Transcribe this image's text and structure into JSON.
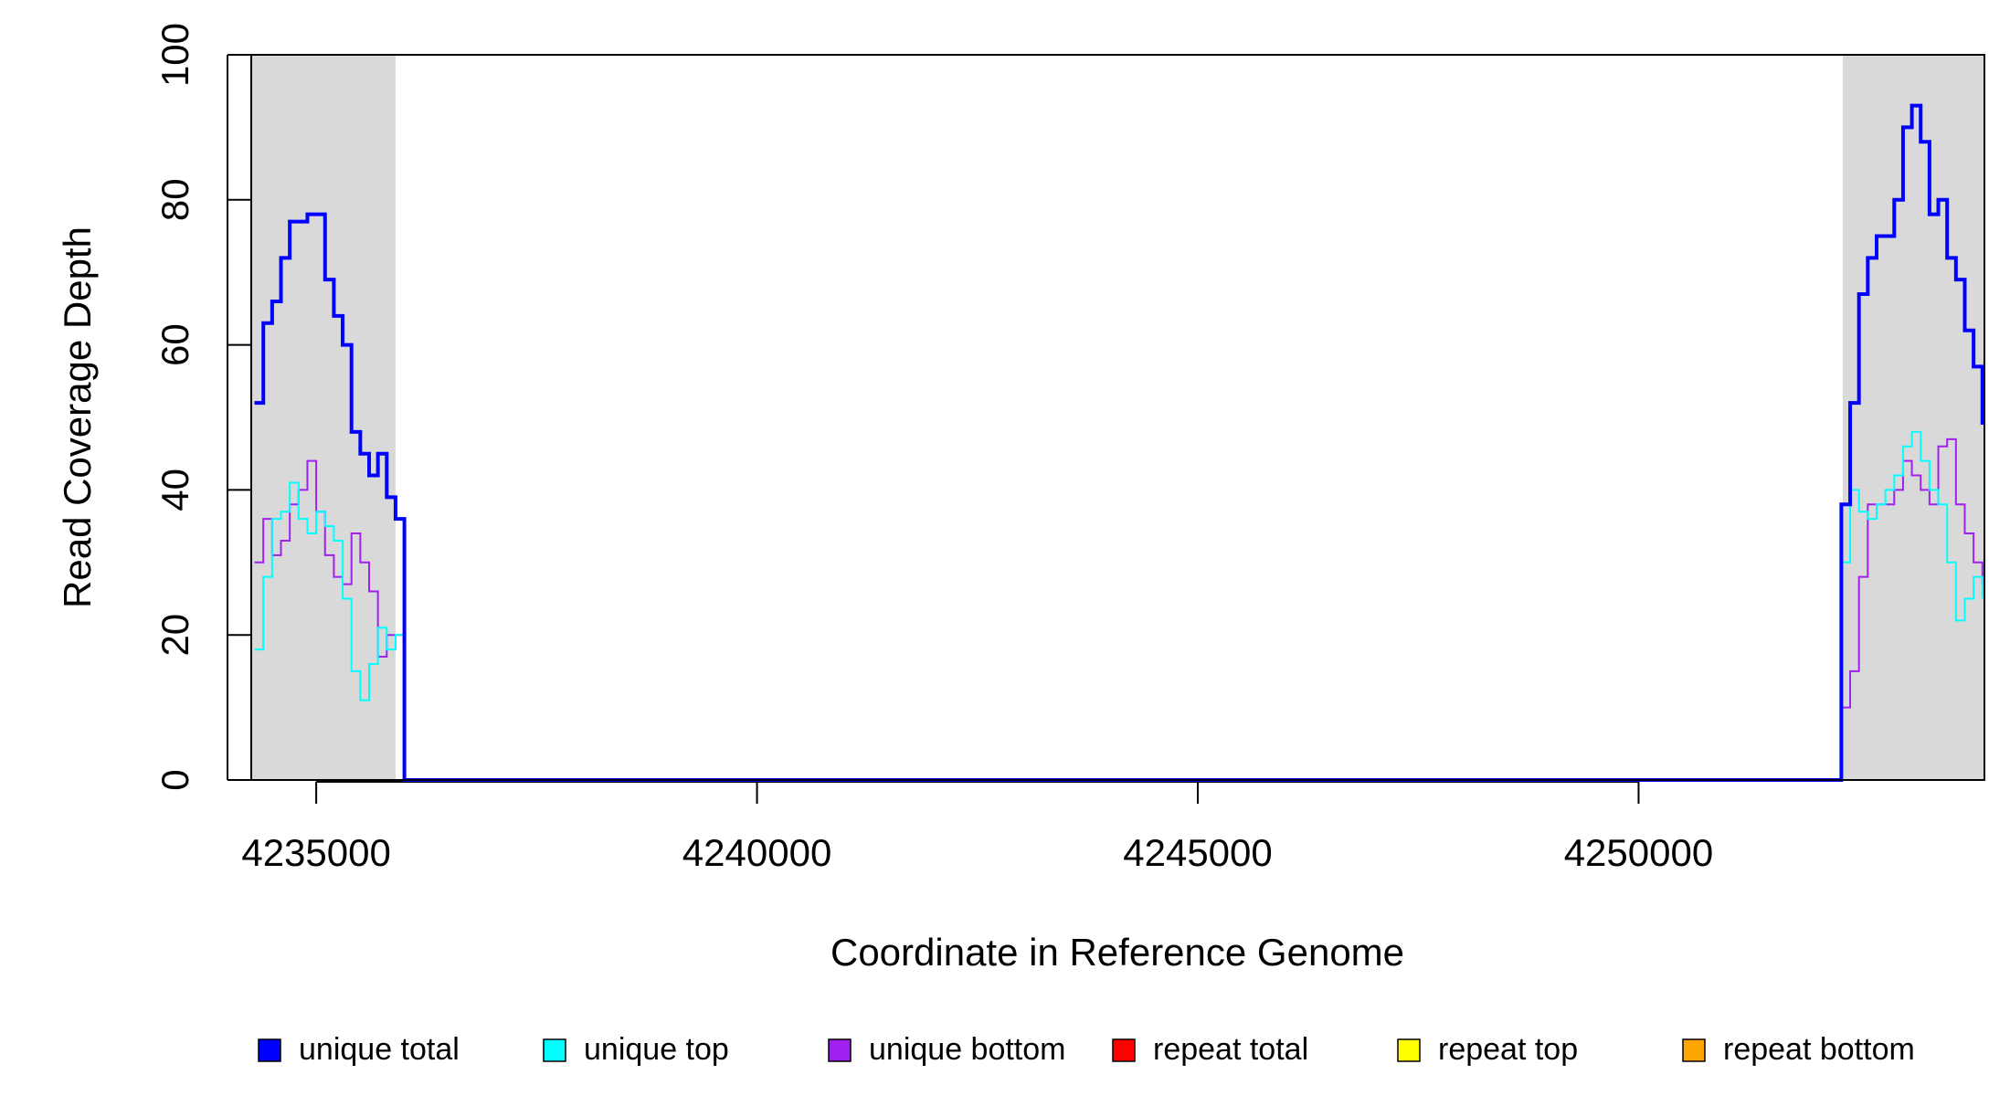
{
  "chart_data": {
    "type": "step",
    "xlabel": "Coordinate in Reference Genome",
    "ylabel": "Read Coverage Depth",
    "x": [
      4234300,
      4234400,
      4234500,
      4234600,
      4234700,
      4234800,
      4234900,
      4235000,
      4235100,
      4235200,
      4235300,
      4235400,
      4235500,
      4235600,
      4235700,
      4235800,
      4235900,
      4236000,
      4252200,
      4252300,
      4252400,
      4252500,
      4252600,
      4252700,
      4252800,
      4252900,
      4253000,
      4253100,
      4253200,
      4253300,
      4253400,
      4253500,
      4253600,
      4253700,
      4253800,
      4253900
    ],
    "series": [
      {
        "name": "unique total",
        "color": "#0000ff",
        "values": [
          52,
          63,
          66,
          72,
          77,
          77,
          78,
          78,
          69,
          64,
          60,
          48,
          45,
          42,
          45,
          39,
          36,
          0,
          0,
          38,
          52,
          67,
          72,
          75,
          75,
          80,
          90,
          93,
          88,
          78,
          80,
          72,
          69,
          62,
          57,
          49
        ]
      },
      {
        "name": "unique top",
        "color": "#00ffff",
        "values": [
          18,
          28,
          36,
          37,
          41,
          36,
          34,
          37,
          35,
          33,
          25,
          15,
          11,
          16,
          21,
          18,
          20,
          0,
          0,
          30,
          40,
          37,
          36,
          38,
          40,
          42,
          46,
          48,
          44,
          40,
          38,
          30,
          22,
          25,
          28,
          25
        ]
      },
      {
        "name": "unique bottom",
        "color": "#a020f0",
        "values": [
          30,
          36,
          31,
          33,
          38,
          40,
          44,
          37,
          31,
          28,
          27,
          34,
          30,
          26,
          17,
          20,
          20,
          0,
          0,
          10,
          15,
          28,
          38,
          38,
          38,
          40,
          44,
          42,
          40,
          38,
          46,
          47,
          38,
          34,
          30,
          27
        ]
      },
      {
        "name": "repeat total",
        "color": "#ff0000",
        "values": [
          0,
          0,
          0,
          0,
          0,
          0,
          0,
          0,
          0,
          0,
          0,
          0,
          0,
          0,
          0,
          0,
          0,
          0,
          0,
          0,
          0,
          0,
          0,
          0,
          0,
          0,
          0,
          0,
          0,
          0,
          0,
          0,
          0,
          0,
          0,
          0
        ]
      },
      {
        "name": "repeat top",
        "color": "#ffff00",
        "values": [
          0,
          0,
          0,
          0,
          0,
          0,
          0,
          0,
          0,
          0,
          0,
          0,
          0,
          0,
          0,
          0,
          0,
          0,
          0,
          0,
          0,
          0,
          0,
          0,
          0,
          0,
          0,
          0,
          0,
          0,
          0,
          0,
          0,
          0,
          0,
          0
        ]
      },
      {
        "name": "repeat bottom",
        "color": "#ffa500",
        "values": [
          0,
          0,
          0,
          0,
          0,
          0,
          0,
          0,
          0,
          0,
          0,
          0,
          0,
          0,
          0,
          0,
          0,
          0,
          0,
          0,
          0,
          0,
          0,
          0,
          0,
          0,
          0,
          0,
          0,
          0,
          0,
          0,
          0,
          0,
          0,
          0
        ]
      }
    ],
    "shaded_regions": [
      [
        4234263,
        4235900
      ],
      [
        4252316,
        4253923
      ]
    ],
    "shade_color": "#d9d9d9",
    "xlim": [
      4234263,
      4253923
    ],
    "xticks": [
      4235000,
      4240000,
      4245000,
      4250000
    ],
    "ylim": [
      0,
      100
    ],
    "yticks": [
      0,
      20,
      40,
      60,
      80,
      100
    ],
    "grid": false,
    "legend": "bottom"
  }
}
